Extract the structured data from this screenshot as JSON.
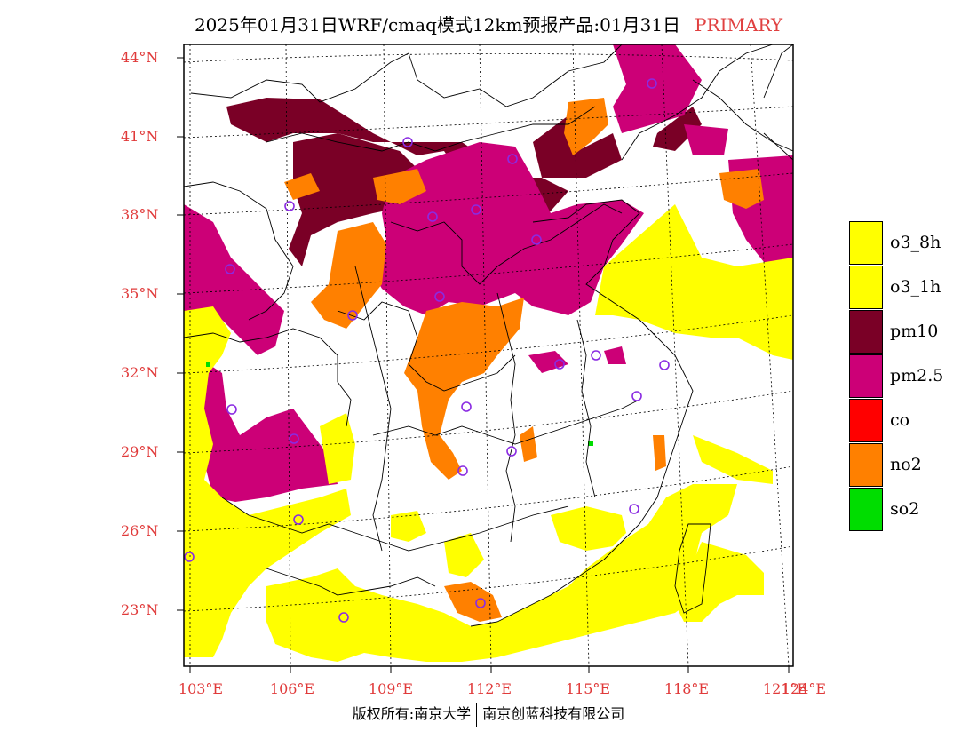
{
  "title": {
    "main": "2025年01月31日WRF/cmaq模式12km预报产品:01月31日",
    "tag": "PRIMARY"
  },
  "lat_labels": [
    "44°N",
    "41°N",
    "38°N",
    "35°N",
    "32°N",
    "29°N",
    "26°N",
    "23°N"
  ],
  "lon_labels": [
    "103°E",
    "106°E",
    "109°E",
    "112°E",
    "115°E",
    "118°E",
    "121°E",
    "124°E"
  ],
  "legend": [
    {
      "label": "o3_8h",
      "color": "#ffff00"
    },
    {
      "label": "o3_1h",
      "color": "#ffff00"
    },
    {
      "label": "pm10",
      "color": "#7a0026"
    },
    {
      "label": "pm2.5",
      "color": "#cc0077"
    },
    {
      "label": "co",
      "color": "#ff0000"
    },
    {
      "label": "no2",
      "color": "#ff8000"
    },
    {
      "label": "so2",
      "color": "#00dd00"
    }
  ],
  "footer": {
    "left": "版权所有:南京大学",
    "right": "南京创蓝科技有限公司"
  }
}
